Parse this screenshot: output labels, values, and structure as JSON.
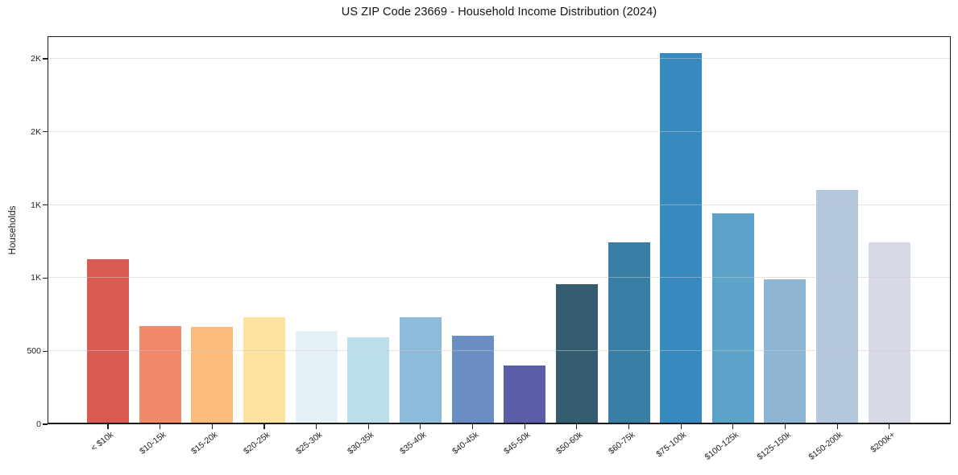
{
  "title": "US ZIP Code 23669 - Household Income Distribution (2024)",
  "chart_data": {
    "type": "bar",
    "title": "US ZIP Code 23669 - Household Income Distribution (2024)",
    "xlabel": "",
    "ylabel": "Households",
    "ylim": [
      0,
      2654
    ],
    "grid": true,
    "legend": false,
    "categories": [
      "< $10k",
      "$10-15k",
      "$15-20k",
      "$20-25k",
      "$25-30k",
      "$30-35k",
      "$35-40k",
      "$40-45k",
      "$45-50k",
      "$50-60k",
      "$60-75k",
      "$75-100k",
      "$100-125k",
      "$125-150k",
      "$150-200k",
      "$200k+"
    ],
    "values": [
      1130,
      670,
      665,
      730,
      640,
      595,
      735,
      605,
      400,
      960,
      1245,
      2540,
      1440,
      990,
      1600,
      1245
    ],
    "bar_colors": [
      "#D85B52",
      "#F28A6A",
      "#FABB7D",
      "#FCE3A0",
      "#E4F0F6",
      "#BBDEEA",
      "#8FBBDA",
      "#6A8EC4",
      "#5A5EA8",
      "#345E70",
      "#387FA5",
      "#368ABF",
      "#5BA3C9",
      "#8FB5D5",
      "#B5C7DD",
      "#D8D9E6"
    ],
    "y_ticks": [
      {
        "value": 0,
        "label": "0"
      },
      {
        "value": 500,
        "label": "500"
      },
      {
        "value": 1000,
        "label": "1K"
      },
      {
        "value": 1500,
        "label": "1K"
      },
      {
        "value": 2000,
        "label": "2K"
      },
      {
        "value": 2500,
        "label": "2K"
      }
    ]
  },
  "colors": {
    "background": "#ffffff",
    "axis": "#1c1c1c",
    "grid": "#e9e9ee",
    "tick_text": "#222222",
    "title_text": "#141414"
  }
}
